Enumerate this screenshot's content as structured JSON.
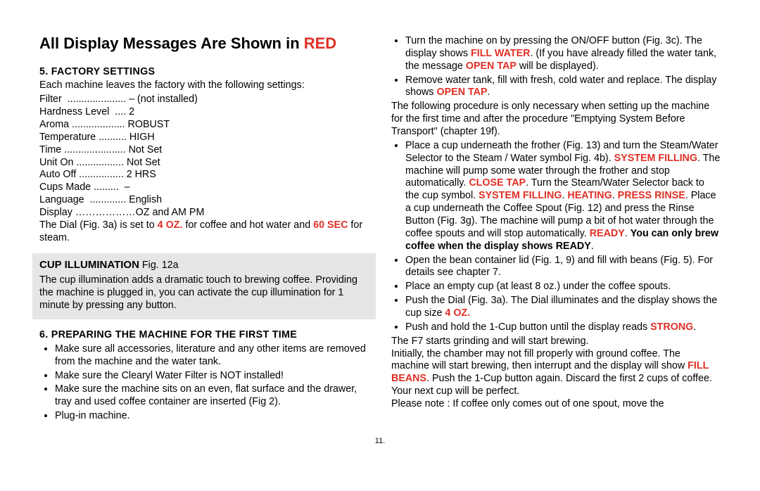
{
  "title": {
    "prefix": "All Display Messages Are Shown in ",
    "highlight": "RED"
  },
  "colors": {
    "red": "#e03026",
    "callout_bg": "#e6e6e6",
    "text": "#000000",
    "bg": "#ffffff"
  },
  "left": {
    "sec5": {
      "heading": "5. Factory Settings",
      "intro": "Each machine leaves the factory with the following settings:",
      "settings": [
        "Filter  ..................... – (not installed)",
        "Hardness Level  .... 2",
        "Aroma ................... ROBUST",
        "Temperature .......... HIGH",
        "Time ...................... Not Set",
        "Unit On ................. Not Set",
        "Auto Off ................ 2 HRS",
        "Cups Made .........  –",
        "Language  ............. English",
        "Display ………………OZ and AM PM"
      ],
      "dial_pre": "The Dial (Fig. 3a) is set to ",
      "dial_oz": "4 OZ.",
      "dial_mid": " for coffee and hot water and ",
      "dial_sec": "60 SEC",
      "dial_post": " for steam."
    },
    "callout": {
      "title_bold": "CUP ILLUMINATION",
      "title_rest": " Fig. 12a",
      "body": "The cup illumination adds a dramatic touch to brewing coffee. Providing the machine is plugged in, you can activate the cup illumination for 1 minute by pressing any button."
    },
    "sec6": {
      "heading": "6. Preparing The Machine For The First Time",
      "bullets": [
        "Make sure all accessories, literature and any other items are removed from the machine and the water tank.",
        "Make sure the Clearyl Water Filter is NOT installed!",
        "Make sure the machine sits on an even, flat surface and the drawer, tray and used coffee container are inserted (Fig 2).",
        "Plug-in machine."
      ]
    }
  },
  "right": {
    "bullets1": {
      "b1_pre": "Turn the machine on by pressing the ON/OFF button (Fig. 3c). The display shows ",
      "b1_fillwater": "FILL WATER",
      "b1_mid": ". (If you have already filled the water tank, the message ",
      "b1_opentap": "OPEN TAP",
      "b1_post": " will be displayed).",
      "b2_pre": "Remove water tank, fill with fresh, cold water and replace. The display shows ",
      "b2_opentap": "OPEN TAP",
      "b2_post": "."
    },
    "para1": "The following procedure is only necessary when setting up the machine for the first time and after the procedure \"Emptying System Before Transport\" (chapter 19f).",
    "bullets2": {
      "b1": {
        "t1": "Place a cup underneath the frother (Fig. 13) and turn the Steam/Water Selector to the Steam / Water symbol Fig. 4b). ",
        "sf": "SYSTEM FILLING",
        "t2": ". The machine will pump some water through the frother and stop automatically. ",
        "ct": "CLOSE TAP",
        "t3": ". Turn the Steam/Water Selector back to the cup symbol. ",
        "sf2": "SYSTEM FILLING",
        "dot1": ". ",
        "heat": "HEATING",
        "dot2": ". ",
        "pr": "PRESS RINSE",
        "t4": ".  Place a cup underneath the Coffee Spout (Fig. 12) and press the Rinse Button (Fig. 3g). The machine will pump a bit of hot water through the coffee spouts and will stop automatically. ",
        "ready": "READY",
        "t5": ". ",
        "only": "You can only brew coffee when the display shows READY",
        "t6": "."
      },
      "b2": "Open the bean container lid (Fig. 1, 9) and fill with beans (Fig. 5). For details see chapter 7.",
      "b3": "Place an empty cup (at least 8 oz.) under the coffee spouts.",
      "b4_pre": "Push the Dial (Fig. 3a). The Dial illuminates and the display shows the cup size ",
      "b4_oz": "4 OZ.",
      "b5_pre": "Push and hold the 1-Cup button until the display reads ",
      "b5_strong": "STRONG",
      "b5_post": "."
    },
    "para2_pre": "The F7 starts grinding and will start brewing.",
    "para3": "Initially, the chamber may not fill properly with ground coffee. The machine will start brewing, then interrupt and the display will show ",
    "para3_fill": "FILL BEANS",
    "para3_post": ". Push the 1-Cup button again. Discard the first 2 cups of coffee. Your next cup will be perfect.",
    "para4": "Please note : If coffee only comes out of one spout, move the"
  },
  "page_number": "11."
}
